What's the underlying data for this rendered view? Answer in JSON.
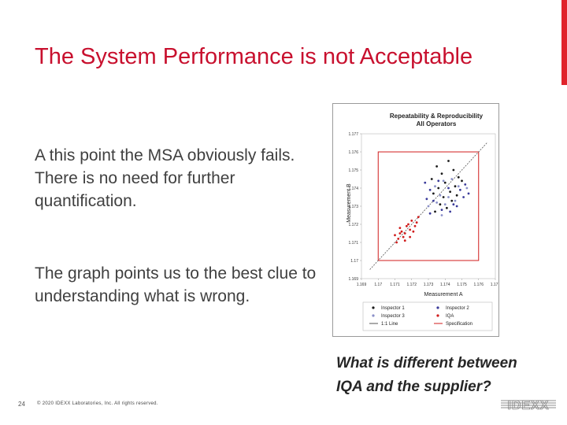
{
  "slide": {
    "title": "The System Performance is not Acceptable",
    "paragraph1": "A this point the MSA obviously fails.  There is no need for further quantification.",
    "paragraph2": "The graph points us to the best clue to understanding what is wrong.",
    "question_line1": "What is different between",
    "question_line2": "IQA and the supplier?",
    "page_number": "24",
    "copyright": "© 2020 IDEXX Laboratories, Inc. All rights reserved.",
    "logo_text": "IDEXX",
    "accent_color": "#e0232b",
    "title_color": "#c8102e"
  },
  "chart_data": {
    "type": "scatter",
    "title": "Repeatability & Reproducibility",
    "subtitle": "All Operators",
    "xlabel": "Measurement A",
    "ylabel": "Measurement B",
    "xlim": [
      1.169,
      1.177
    ],
    "ylim": [
      1.169,
      1.177
    ],
    "x_ticks": [
      "1.169",
      "1.17",
      "1.171",
      "1.172",
      "1.173",
      "1.174",
      "1.175",
      "1.176",
      "1.177"
    ],
    "y_ticks": [
      "1.169",
      "1.17",
      "1.171",
      "1.172",
      "1.173",
      "1.174",
      "1.175",
      "1.176",
      "1.177"
    ],
    "specification": {
      "lower": 1.17,
      "upper": 1.176
    },
    "reference_line": "1:1 Line",
    "legend_position": "bottom",
    "series": [
      {
        "name": "Inspector 1",
        "color": "#1a1a1a",
        "points": [
          [
            1.1735,
            1.1752
          ],
          [
            1.1738,
            1.1748
          ],
          [
            1.1742,
            1.1755
          ],
          [
            1.1745,
            1.175
          ],
          [
            1.1732,
            1.1745
          ],
          [
            1.174,
            1.1743
          ],
          [
            1.1748,
            1.1746
          ],
          [
            1.1736,
            1.174
          ],
          [
            1.1743,
            1.1738
          ],
          [
            1.1746,
            1.1741
          ],
          [
            1.1733,
            1.1737
          ],
          [
            1.1739,
            1.1735
          ],
          [
            1.1744,
            1.1733
          ],
          [
            1.175,
            1.1744
          ],
          [
            1.1737,
            1.1731
          ],
          [
            1.1741,
            1.1729
          ],
          [
            1.1747,
            1.1736
          ],
          [
            1.1734,
            1.1727
          ]
        ]
      },
      {
        "name": "Inspector 2",
        "color": "#3a3a9a",
        "points": [
          [
            1.1728,
            1.1743
          ],
          [
            1.1731,
            1.1739
          ],
          [
            1.1736,
            1.1744
          ],
          [
            1.1742,
            1.174
          ],
          [
            1.1749,
            1.1739
          ],
          [
            1.1752,
            1.1742
          ],
          [
            1.1729,
            1.1734
          ],
          [
            1.1733,
            1.1733
          ],
          [
            1.1745,
            1.1731
          ],
          [
            1.1751,
            1.1735
          ],
          [
            1.1738,
            1.1728
          ],
          [
            1.1743,
            1.1727
          ],
          [
            1.1747,
            1.173
          ],
          [
            1.1754,
            1.1737
          ],
          [
            1.1731,
            1.1726
          ]
        ]
      },
      {
        "name": "Inspector 3",
        "color": "#8a8fc8",
        "points": [
          [
            1.1734,
            1.1741
          ],
          [
            1.1739,
            1.1744
          ],
          [
            1.1744,
            1.1745
          ],
          [
            1.1737,
            1.1736
          ],
          [
            1.1742,
            1.1735
          ],
          [
            1.1748,
            1.1741
          ],
          [
            1.173,
            1.173
          ],
          [
            1.1735,
            1.1732
          ],
          [
            1.174,
            1.1731
          ],
          [
            1.1746,
            1.1733
          ],
          [
            1.1753,
            1.174
          ],
          [
            1.1738,
            1.1725
          ]
        ]
      },
      {
        "name": "IQA",
        "color": "#d01c1c",
        "points": [
          [
            1.171,
            1.1714
          ],
          [
            1.1712,
            1.1712
          ],
          [
            1.1714,
            1.1716
          ],
          [
            1.1716,
            1.1715
          ],
          [
            1.1713,
            1.1718
          ],
          [
            1.1717,
            1.1719
          ],
          [
            1.1719,
            1.1717
          ],
          [
            1.1711,
            1.171
          ],
          [
            1.1715,
            1.1713
          ],
          [
            1.1718,
            1.172
          ],
          [
            1.172,
            1.1722
          ],
          [
            1.1722,
            1.1719
          ],
          [
            1.1716,
            1.1711
          ],
          [
            1.1721,
            1.1716
          ],
          [
            1.1724,
            1.1724
          ],
          [
            1.1713,
            1.1715
          ],
          [
            1.1719,
            1.1713
          ],
          [
            1.1723,
            1.1721
          ]
        ]
      }
    ],
    "legend": [
      {
        "label": "Inspector 1",
        "marker": "dot",
        "color": "#1a1a1a"
      },
      {
        "label": "Inspector 2",
        "marker": "dot",
        "color": "#3a3a9a"
      },
      {
        "label": "Inspector 3",
        "marker": "dot",
        "color": "#8a8fc8"
      },
      {
        "label": "IQA",
        "marker": "dot",
        "color": "#d01c1c"
      },
      {
        "label": "1:1 Line",
        "marker": "line",
        "color": "#555555"
      },
      {
        "label": "Specification",
        "marker": "line",
        "color": "#d01c1c"
      }
    ]
  }
}
